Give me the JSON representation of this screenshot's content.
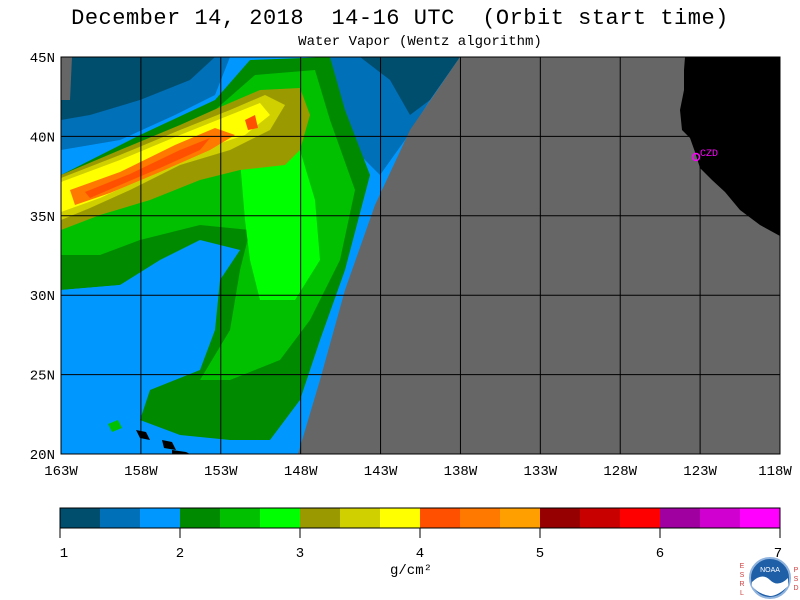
{
  "title": "December 14, 2018  14-16 UTC  (Orbit start time)",
  "subtitle": "Water Vapor (Wentz algorithm)",
  "map": {
    "lat_labels": [
      "45N",
      "40N",
      "35N",
      "30N",
      "25N",
      "20N"
    ],
    "lon_labels": [
      "163W",
      "158W",
      "153W",
      "148W",
      "143W",
      "138W",
      "133W",
      "128W",
      "123W",
      "118W"
    ],
    "station_label": "CZD",
    "no_data_color": "#666666",
    "land_color": "#000000",
    "station_color": "#ff00ff"
  },
  "colorbar": {
    "tick_labels": [
      "1",
      "2",
      "3",
      "4",
      "5",
      "6",
      "7"
    ],
    "units": "g/cm²",
    "colors": [
      "#004e6e",
      "#0070b8",
      "#0098ff",
      "#008a00",
      "#00c000",
      "#00ff00",
      "#9a9a00",
      "#d0d000",
      "#ffff00",
      "#ff5000",
      "#ff7800",
      "#ffa000",
      "#960000",
      "#c80000",
      "#ff0000",
      "#a000a0",
      "#d000d0",
      "#ff00ff"
    ]
  },
  "logo": {
    "left_letters": [
      "E",
      "S",
      "R",
      "L"
    ],
    "right_letters": [
      "P",
      "S",
      "D"
    ],
    "center_text": "NOAA"
  }
}
